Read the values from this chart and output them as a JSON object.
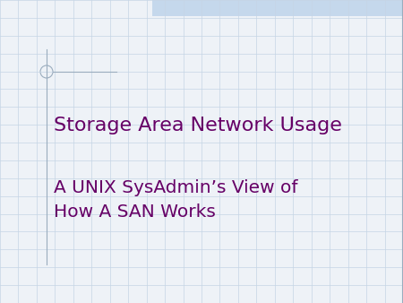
{
  "title_line1": "Storage Area Network Usage",
  "title_line2": "A UNIX SysAdmin’s View of\nHow A SAN Works",
  "text_color": "#660066",
  "bg_color": "#eef2f7",
  "grid_color": "#c5d5e5",
  "header_color": "#c5d8ec",
  "line_color": "#9aacbe",
  "title1_fontsize": 16,
  "title2_fontsize": 14.5,
  "figsize": [
    4.5,
    3.38
  ],
  "dpi": 100
}
